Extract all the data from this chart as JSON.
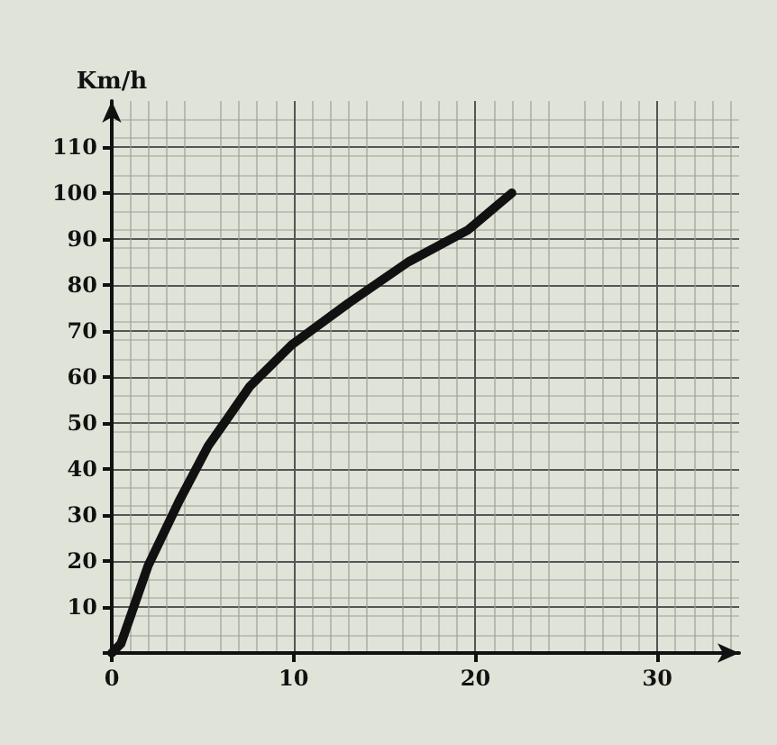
{
  "chart_data": {
    "type": "line",
    "ylabel": "Km/h",
    "series": [
      {
        "color": "#111111",
        "x": [
          0,
          0.5,
          2,
          3.7,
          5.3,
          7.6,
          9.9,
          13,
          16.3,
          19.6,
          22
        ],
        "values": [
          0,
          2,
          19,
          33,
          45,
          58,
          67,
          76,
          85,
          92,
          100
        ]
      }
    ],
    "xlim": [
      0,
      34.5
    ],
    "ylim": [
      0,
      120
    ],
    "xticks": [
      {
        "value": 0,
        "label": "0"
      },
      10,
      20,
      30
    ],
    "yticks": [
      {
        "value": 0,
        "label": null
      },
      10,
      20,
      30,
      40,
      50,
      60,
      70,
      80,
      90,
      100,
      110
    ],
    "grid": true,
    "marker": "none",
    "line_style": "solid"
  }
}
